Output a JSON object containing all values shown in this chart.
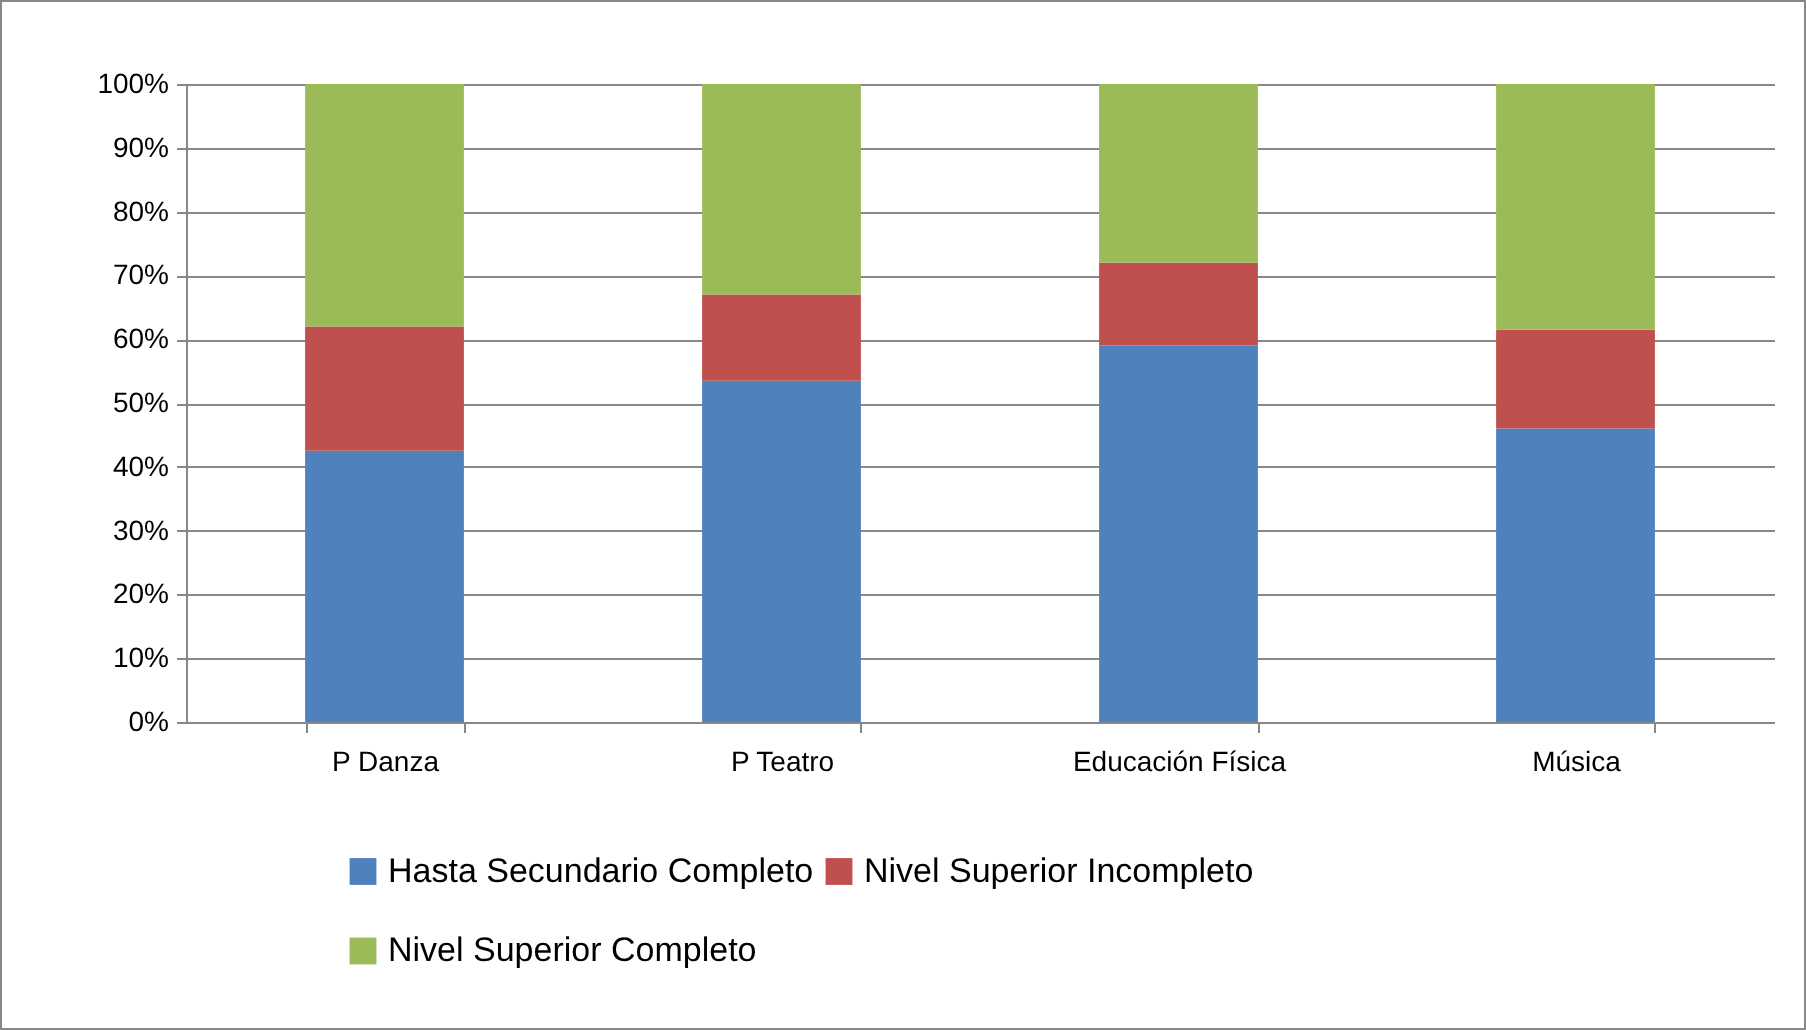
{
  "chart_data": {
    "type": "bar",
    "stacked": true,
    "categories": [
      "P Danza",
      "P Teatro",
      "Educación Física",
      "Música"
    ],
    "series": [
      {
        "name": "Hasta Secundario Completo",
        "color": "#4f81bd",
        "values": [
          42.5,
          53.5,
          59,
          46
        ]
      },
      {
        "name": "Nivel Superior Incompleto",
        "color": "#c0504d",
        "values": [
          19.5,
          13.5,
          13,
          15.5
        ]
      },
      {
        "name": "Nivel Superior Completo",
        "color": "#9bbb59",
        "values": [
          38,
          33,
          28,
          38.5
        ]
      }
    ],
    "ylim": [
      0,
      100
    ],
    "yticks": [
      {
        "value": 0,
        "label": "0%"
      },
      {
        "value": 10,
        "label": "10%"
      },
      {
        "value": 20,
        "label": "20%"
      },
      {
        "value": 30,
        "label": "30%"
      },
      {
        "value": 40,
        "label": "40%"
      },
      {
        "value": 50,
        "label": "50%"
      },
      {
        "value": 60,
        "label": "60%"
      },
      {
        "value": 70,
        "label": "70%"
      },
      {
        "value": 80,
        "label": "80%"
      },
      {
        "value": 90,
        "label": "90%"
      },
      {
        "value": 100,
        "label": "100%"
      }
    ],
    "grid": "y",
    "legend": "bottom"
  }
}
